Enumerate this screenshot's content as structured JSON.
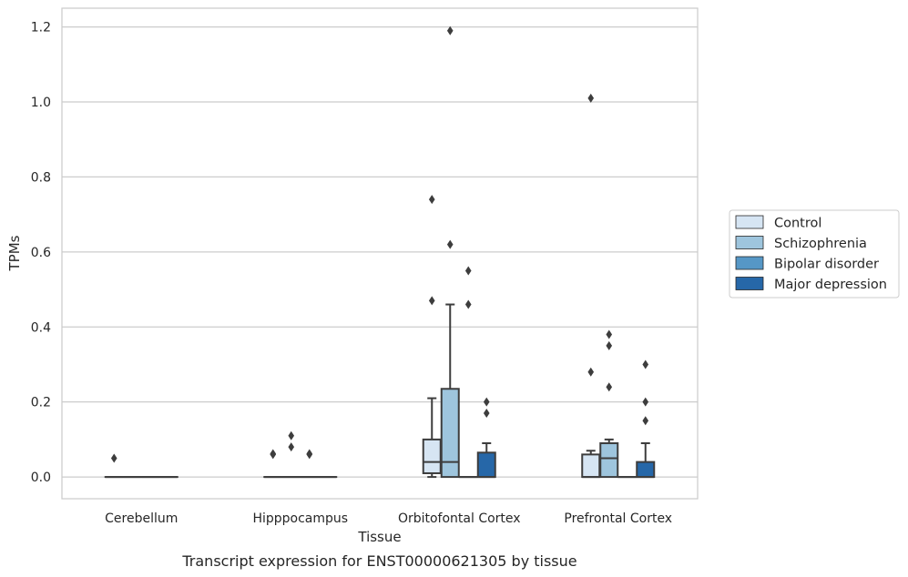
{
  "caption": "Transcript expression for ENST00000621305 by tissue",
  "chart_data": {
    "type": "boxplot",
    "xlabel": "Tissue",
    "ylabel": "TPMs",
    "ylim": [
      -0.058,
      1.25
    ],
    "yticks": [
      0.0,
      0.2,
      0.4,
      0.6,
      0.8,
      1.0,
      1.2
    ],
    "ytick_labels": [
      "0.0",
      "0.2",
      "0.4",
      "0.6",
      "0.8",
      "1.0",
      "1.2"
    ],
    "grid": "horizontal",
    "legend_position": "right",
    "categories": [
      "Cerebellum",
      "Hipppocampus",
      "Orbitofontal Cortex",
      "Prefrontal Cortex"
    ],
    "series": [
      {
        "name": "Control",
        "color": "#d6e5f3",
        "boxes": [
          {
            "q1": 0,
            "median": 0,
            "q3": 0,
            "whisker_low": 0,
            "whisker_high": 0,
            "outliers": [
              0.05
            ]
          },
          {
            "q1": 0,
            "median": 0,
            "q3": 0,
            "whisker_low": 0,
            "whisker_high": 0,
            "outliers": [
              0.06,
              0.062
            ]
          },
          {
            "q1": 0.01,
            "median": 0.04,
            "q3": 0.1,
            "whisker_low": 0,
            "whisker_high": 0.21,
            "outliers": [
              0.47,
              0.74
            ]
          },
          {
            "q1": 0,
            "median": 0,
            "q3": 0.06,
            "whisker_low": 0,
            "whisker_high": 0.07,
            "outliers": [
              0.28,
              1.01
            ]
          }
        ]
      },
      {
        "name": "Schizophrenia",
        "color": "#9ec5dd",
        "boxes": [
          {
            "q1": 0,
            "median": 0,
            "q3": 0,
            "whisker_low": 0,
            "whisker_high": 0,
            "outliers": []
          },
          {
            "q1": 0,
            "median": 0,
            "q3": 0,
            "whisker_low": 0,
            "whisker_high": 0,
            "outliers": [
              0.08,
              0.11
            ]
          },
          {
            "q1": 0,
            "median": 0.04,
            "q3": 0.235,
            "whisker_low": 0,
            "whisker_high": 0.46,
            "outliers": [
              0.62,
              1.19
            ]
          },
          {
            "q1": 0,
            "median": 0.05,
            "q3": 0.09,
            "whisker_low": 0,
            "whisker_high": 0.1,
            "outliers": [
              0.24,
              0.35,
              0.38
            ]
          }
        ]
      },
      {
        "name": "Bipolar disorder",
        "color": "#5697c6",
        "boxes": [
          {
            "q1": 0,
            "median": 0,
            "q3": 0,
            "whisker_low": 0,
            "whisker_high": 0,
            "outliers": []
          },
          {
            "q1": 0,
            "median": 0,
            "q3": 0,
            "whisker_low": 0,
            "whisker_high": 0,
            "outliers": [
              0.06,
              0.062
            ]
          },
          {
            "q1": 0,
            "median": 0,
            "q3": 0,
            "whisker_low": 0,
            "whisker_high": 0,
            "outliers": [
              0.46,
              0.55
            ]
          },
          {
            "q1": 0,
            "median": 0,
            "q3": 0,
            "whisker_low": 0,
            "whisker_high": 0,
            "outliers": []
          }
        ]
      },
      {
        "name": "Major depression",
        "color": "#2667a8",
        "boxes": [
          {
            "q1": 0,
            "median": 0,
            "q3": 0,
            "whisker_low": 0,
            "whisker_high": 0,
            "outliers": []
          },
          {
            "q1": 0,
            "median": 0,
            "q3": 0,
            "whisker_low": 0,
            "whisker_high": 0,
            "outliers": []
          },
          {
            "q1": 0,
            "median": 0,
            "q3": 0.065,
            "whisker_low": 0,
            "whisker_high": 0.09,
            "outliers": [
              0.17,
              0.2
            ]
          },
          {
            "q1": 0,
            "median": 0,
            "q3": 0.04,
            "whisker_low": 0,
            "whisker_high": 0.09,
            "outliers": [
              0.15,
              0.2,
              0.3
            ]
          }
        ]
      }
    ]
  }
}
